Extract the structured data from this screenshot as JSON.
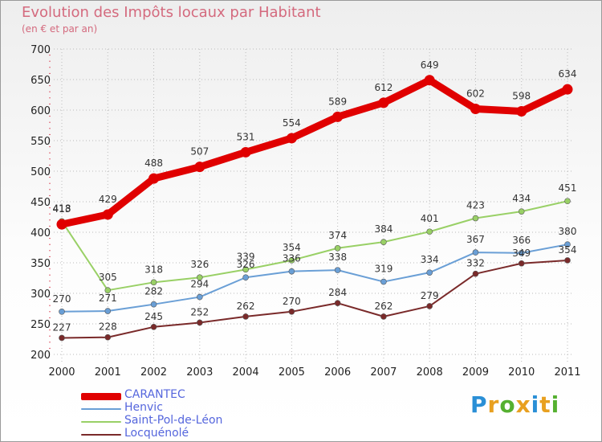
{
  "header": {
    "title": "Evolution des Impôts locaux par Habitant",
    "subtitle": "(en € et par an)"
  },
  "logo": {
    "text": "Proxiti",
    "colors": [
      "#2a8fd6",
      "#e8a020",
      "#55b030",
      "#e8a020",
      "#2a8fd6",
      "#e8a020",
      "#55b030"
    ]
  },
  "chart_data": {
    "type": "line",
    "title": "Evolution des Impôts locaux par Habitant",
    "subtitle": "(en € et par an)",
    "xlabel": "",
    "ylabel": "",
    "x": [
      "2000",
      "2001",
      "2002",
      "2003",
      "2004",
      "2005",
      "2006",
      "2007",
      "2008",
      "2009",
      "2010",
      "2011"
    ],
    "ylim": [
      200,
      700
    ],
    "yticks": [
      200,
      250,
      300,
      350,
      400,
      450,
      500,
      550,
      600,
      650,
      700
    ],
    "grid": true,
    "legend_position": "bottom-left",
    "series": [
      {
        "name": "CARANTEC",
        "color": "#e00000",
        "values": [
          413,
          429,
          488,
          507,
          531,
          554,
          589,
          612,
          649,
          602,
          598,
          634
        ]
      },
      {
        "name": "Henvic",
        "color": "#6a9fd6",
        "values": [
          270,
          271,
          282,
          294,
          326,
          336,
          338,
          319,
          334,
          367,
          366,
          380
        ]
      },
      {
        "name": "Saint-Pol-de-Léon",
        "color": "#99d066",
        "values": [
          418,
          305,
          318,
          326,
          339,
          354,
          374,
          384,
          401,
          423,
          434,
          451
        ]
      },
      {
        "name": "Locquénolé",
        "color": "#7a2a2a",
        "values": [
          227,
          228,
          245,
          252,
          262,
          270,
          284,
          262,
          279,
          332,
          349,
          354
        ]
      }
    ]
  }
}
